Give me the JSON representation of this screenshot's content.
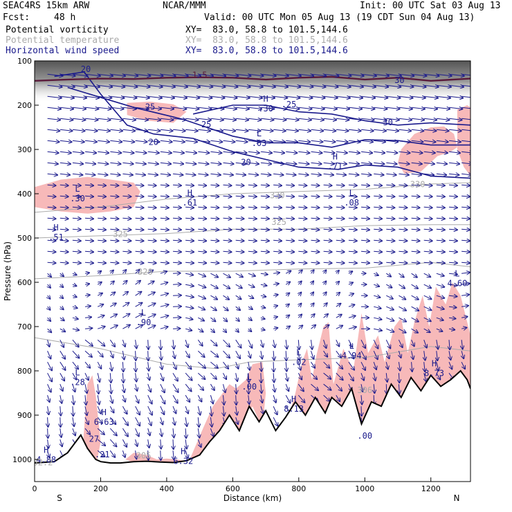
{
  "header": {
    "model": "SEAC4RS 15km ARW",
    "org": "NCAR/MMM",
    "init": "Init: 00 UTC Sat 03 Aug 13",
    "fcst_label": "Fcst:",
    "fcst_value": "48 h",
    "valid": "Valid: 00 UTC Mon 05 Aug 13 (19 CDT Sun 04 Aug 13)",
    "fields": [
      {
        "name": "Potential vorticity",
        "xy": "XY=  83.0, 58.8 to 101.5,144.6",
        "color": "#000000"
      },
      {
        "name": "Potential temperature",
        "xy": "XY=  83.0, 58.8 to 101.5,144.6",
        "color": "#aaaaaa"
      },
      {
        "name": "Horizontal wind speed",
        "xy": "XY=  83.0, 58.8 to 101.5,144.6",
        "color": "#1a1a8c"
      }
    ]
  },
  "colors": {
    "pv_fill": "#f7b9b9",
    "pv_dark": "#5a1a3a",
    "theta": "#aaaaaa",
    "wind_contour": "#1a1a8c",
    "vector": "#1a1a8c",
    "terrain": "#000000"
  },
  "chart_data": {
    "type": "cross-section",
    "xlabel": "Distance (km)",
    "ylabel": "Pressure (hPa)",
    "xlim": [
      0,
      1320
    ],
    "ylim": [
      1050,
      100
    ],
    "x_ticks": [
      "0",
      "200",
      "400",
      "600",
      "800",
      "1000",
      "1200"
    ],
    "x_tick_values": [
      0,
      200,
      400,
      600,
      800,
      1000,
      1200
    ],
    "y_ticks": [
      "100",
      "200",
      "300",
      "400",
      "500",
      "600",
      "700",
      "800",
      "900",
      "1000"
    ],
    "y_tick_values": [
      100,
      200,
      300,
      400,
      500,
      600,
      700,
      800,
      900,
      1000
    ],
    "endpoints": {
      "left": "S",
      "right": "N"
    },
    "terrain": {
      "x": [
        0,
        60,
        100,
        140,
        160,
        185,
        200,
        230,
        260,
        300,
        340,
        380,
        420,
        460,
        500,
        530,
        560,
        590,
        620,
        650,
        680,
        700,
        730,
        760,
        790,
        820,
        850,
        880,
        900,
        930,
        960,
        990,
        1020,
        1050,
        1080,
        1110,
        1140,
        1170,
        1200,
        1230,
        1260,
        1290,
        1310,
        1320
      ],
      "p": [
        1008,
        1005,
        985,
        945,
        975,
        1000,
        1005,
        1008,
        1008,
        1005,
        1004,
        1006,
        1007,
        1003,
        990,
        960,
        935,
        900,
        935,
        880,
        915,
        890,
        935,
        905,
        870,
        900,
        860,
        895,
        860,
        880,
        840,
        920,
        870,
        880,
        830,
        860,
        815,
        845,
        810,
        835,
        820,
        800,
        820,
        840
      ]
    },
    "theta_contours": [
      {
        "level": "320",
        "x": [
          0,
          200,
          400,
          600,
          800,
          1000,
          1200,
          1320
        ],
        "p": [
          592,
          585,
          575,
          575,
          570,
          568,
          555,
          565
        ]
      },
      {
        "level": "325",
        "x": [
          0,
          200,
          400,
          600,
          800,
          1000,
          1200,
          1320
        ],
        "p": [
          500,
          495,
          490,
          480,
          480,
          472,
          470,
          470
        ]
      },
      {
        "level": "330",
        "x": [
          0,
          200,
          400,
          600,
          800,
          1000,
          1200,
          1320
        ],
        "p": [
          442,
          430,
          412,
          400,
          395,
          390,
          378,
          375
        ]
      },
      {
        "level": "",
        "x": [
          0,
          200,
          400,
          550,
          650,
          800,
          1000,
          1200,
          1320
        ],
        "p": [
          725,
          750,
          785,
          795,
          780,
          775,
          770,
          745,
          755
        ]
      }
    ],
    "wind_contours": [
      {
        "level": "20",
        "x": [
          60,
          150,
          200,
          280,
          360,
          480,
          600,
          800,
          920,
          1000,
          1100,
          1200,
          1320
        ],
        "p": [
          135,
          125,
          175,
          245,
          265,
          275,
          305,
          340,
          345,
          335,
          340,
          360,
          365
        ]
      },
      {
        "level": "25",
        "x": [
          100,
          300,
          450,
          600,
          700,
          800,
          900,
          1000,
          1100,
          1200,
          1320
        ],
        "p": [
          160,
          205,
          232,
          270,
          285,
          285,
          295,
          278,
          280,
          290,
          290
        ]
      },
      {
        "level": "30",
        "x": [
          480,
          600,
          700,
          800,
          900,
          1000,
          1100,
          1200,
          1320
        ],
        "p": [
          220,
          200,
          200,
          215,
          220,
          235,
          245,
          240,
          245
        ]
      }
    ],
    "pv_dark_line": {
      "level": "1.5",
      "x": [
        0,
        100,
        200,
        300,
        400,
        500,
        600,
        700,
        800,
        900,
        1000,
        1100,
        1200,
        1320
      ],
      "p": [
        145,
        142,
        140,
        141,
        138,
        137,
        138,
        142,
        138,
        136,
        142,
        138,
        145,
        140
      ]
    },
    "pv_high_regions": [
      {
        "x": [
          0,
          80,
          160,
          230,
          300,
          320,
          300,
          230,
          160,
          80,
          0
        ],
        "p": [
          385,
          368,
          362,
          368,
          375,
          395,
          430,
          440,
          445,
          440,
          430
        ]
      },
      {
        "x": [
          280,
          350,
          420,
          460,
          420,
          340,
          280
        ],
        "p": [
          195,
          192,
          198,
          215,
          240,
          235,
          222
        ]
      },
      {
        "x": [
          1110,
          1150,
          1200,
          1240,
          1270,
          1280,
          1260,
          1220,
          1170,
          1120,
          1100
        ],
        "p": [
          300,
          265,
          250,
          248,
          265,
          295,
          305,
          315,
          350,
          355,
          330
        ]
      },
      {
        "x": [
          1280,
          1310,
          1320,
          1320,
          1300,
          1280
        ],
        "p": [
          210,
          200,
          205,
          360,
          340,
          300
        ]
      },
      {
        "x": [
          770,
          790,
          810,
          825,
          840,
          855,
          875,
          890,
          905,
          935,
          965,
          990,
          1010,
          1040,
          1060,
          1090,
          1110,
          1130,
          1150,
          1175,
          1195,
          1215,
          1245,
          1265,
          1290,
          1320,
          1320,
          1290,
          1265,
          1230,
          1200,
          1170,
          1140,
          1110,
          1080,
          1050,
          1020,
          990,
          960,
          930,
          900,
          880,
          850,
          820,
          790,
          770
        ],
        "p": [
          900,
          850,
          780,
          750,
          820,
          760,
          700,
          690,
          830,
          750,
          800,
          670,
          760,
          720,
          780,
          700,
          680,
          760,
          690,
          630,
          700,
          610,
          650,
          600,
          630,
          720,
          840,
          800,
          820,
          835,
          810,
          845,
          815,
          860,
          830,
          880,
          870,
          920,
          840,
          880,
          860,
          895,
          860,
          900,
          870,
          900
        ]
      },
      {
        "x": [
          470,
          510,
          540,
          570,
          590,
          610,
          640,
          660,
          690,
          700,
          690,
          660,
          620,
          590,
          560,
          530,
          500,
          470
        ],
        "p": [
          1000,
          930,
          880,
          850,
          830,
          840,
          820,
          785,
          780,
          850,
          930,
          880,
          935,
          900,
          935,
          960,
          990,
          1003
        ]
      },
      {
        "x": [
          145,
          160,
          175,
          185,
          200,
          190,
          170,
          150,
          140
        ],
        "p": [
          980,
          830,
          810,
          855,
          960,
          1000,
          995,
          980,
          960
        ]
      },
      {
        "x": [
          275,
          300,
          340,
          370,
          400,
          430,
          470,
          430,
          390,
          350,
          300
        ],
        "p": [
          1000,
          985,
          990,
          1000,
          998,
          1000,
          1005,
          1008,
          1008,
          1008,
          1007
        ]
      }
    ],
    "extrema": [
      {
        "letter": "L",
        "value": ".30",
        "x": 130,
        "p": 395
      },
      {
        "letter": "H",
        "value": ".61",
        "x": 470,
        "p": 405
      },
      {
        "letter": "L",
        "value": ".08",
        "x": 960,
        "p": 405
      },
      {
        "letter": "H",
        "value": ".51",
        "x": 65,
        "p": 483
      },
      {
        "letter": "L",
        "value": ".03",
        "x": 680,
        "p": 270
      },
      {
        "letter": "H",
        "value": ".30",
        "x": 700,
        "p": 192
      },
      {
        "letter": "H",
        "value": ".71",
        "x": 910,
        "p": 323
      },
      {
        "letter": "L",
        "value": ".90",
        "x": 330,
        "p": 675
      },
      {
        "letter": "L",
        "value": "4.60",
        "x": 1280,
        "p": 587
      },
      {
        "letter": "L",
        "value": ".02",
        "x": 800,
        "p": 765
      },
      {
        "letter": "L",
        "value": "4.94",
        "x": 960,
        "p": 750
      },
      {
        "letter": "L",
        "value": ".00",
        "x": 650,
        "p": 820
      },
      {
        "letter": "H",
        "value": "8.73",
        "x": 1210,
        "p": 790
      },
      {
        "letter": "L",
        "value": ".28",
        "x": 130,
        "p": 810
      },
      {
        "letter": "H",
        "value": "6.63",
        "x": 210,
        "p": 900
      },
      {
        "letter": "H",
        "value": "8.13",
        "x": 785,
        "p": 870
      },
      {
        "letter": "H",
        "value": "4.88",
        "x": 35,
        "p": 985
      },
      {
        "letter": "H",
        "value": "6.32",
        "x": 450,
        "p": 988
      }
    ],
    "loose_labels": [
      {
        "text": "20",
        "x": 155,
        "p": 125,
        "color": "#1a1a8c"
      },
      {
        "text": "1.5",
        "x": 500,
        "p": 138,
        "color": "#5a1a3a"
      },
      {
        "text": "30",
        "x": 1105,
        "p": 150,
        "color": "#1a1a8c"
      },
      {
        "text": "25",
        "x": 350,
        "p": 210,
        "color": "#1a1a8c"
      },
      {
        "text": ".25",
        "x": 770,
        "p": 205,
        "color": "#1a1a8c"
      },
      {
        "text": "30",
        "x": 1070,
        "p": 245,
        "color": "#1a1a8c"
      },
      {
        "text": "25",
        "x": 520,
        "p": 250,
        "color": "#1a1a8c"
      },
      {
        "text": "20",
        "x": 360,
        "p": 290,
        "color": "#1a1a8c"
      },
      {
        "text": "20",
        "x": 640,
        "p": 335,
        "color": "#1a1a8c"
      },
      {
        "text": "330",
        "x": 1160,
        "p": 385,
        "color": "#aaaaaa"
      },
      {
        "text": "330",
        "x": 735,
        "p": 410,
        "color": "#aaaaaa"
      },
      {
        "text": "325",
        "x": 260,
        "p": 498,
        "color": "#aaaaaa"
      },
      {
        "text": "325",
        "x": 740,
        "p": 470,
        "color": "#aaaaaa"
      },
      {
        "text": "320",
        "x": 335,
        "p": 583,
        "color": "#aaaaaa"
      },
      {
        "text": "27",
        "x": 180,
        "p": 960,
        "color": "#1a1a8c"
      },
      {
        "text": ".21",
        "x": 205,
        "p": 995,
        "color": "#1a1a8c"
      },
      {
        "text": ".00",
        "x": 1000,
        "p": 953,
        "color": "#1a1a8c"
      },
      {
        "text": "32.2",
        "x": 25,
        "p": 1013,
        "color": "#aaaaaa"
      },
      {
        "text": "305",
        "x": 330,
        "p": 998,
        "color": "#aaaaaa"
      },
      {
        "text": "306",
        "x": 1000,
        "p": 850,
        "color": "#aaaaaa"
      }
    ]
  }
}
